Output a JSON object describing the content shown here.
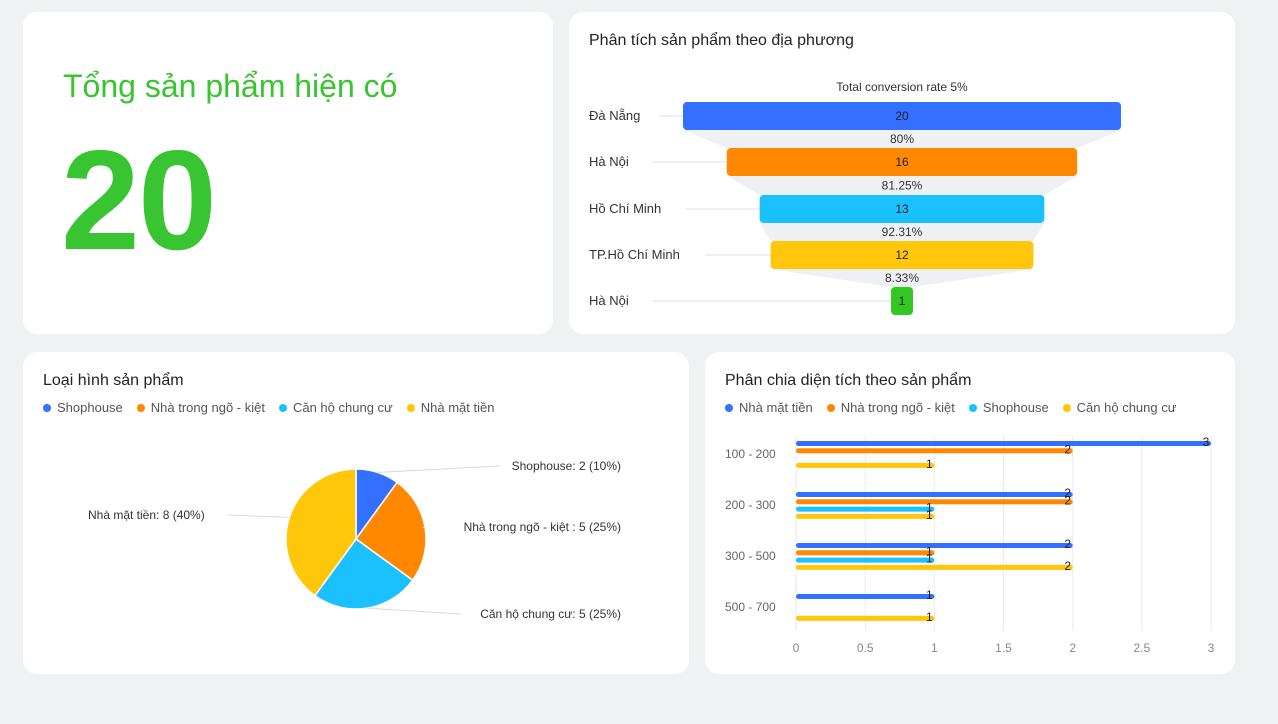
{
  "total": {
    "label": "Tổng sản phẩm hiện có",
    "value": "20",
    "color": "#39c431"
  },
  "funnel": {
    "title": "Phân tích sản phẩm theo địa phương",
    "conversion_label": "Total conversion rate 5%"
  },
  "pie": {
    "title": "Loại hình sản phẩm"
  },
  "bar": {
    "title": "Phân chia diện tích theo sản phẩm"
  },
  "chart_data": [
    {
      "type": "funnel",
      "title": "Phân tích sản phẩm theo địa phương",
      "annotation": "Total conversion rate 5%",
      "categories": [
        "Đà Nẵng",
        "Hà Nội",
        "Hồ Chí Minh",
        "TP.Hồ Chí Minh",
        "Hà Nội"
      ],
      "values": [
        20,
        16,
        13,
        12,
        1
      ],
      "conversion_labels": [
        "80%",
        "81.25%",
        "92.31%",
        "8.33%"
      ],
      "colors": [
        "#3370ff",
        "#ff8800",
        "#1bc0fe",
        "#ffc60a",
        "#34c724"
      ]
    },
    {
      "type": "pie",
      "title": "Loại hình sản phẩm",
      "labels": [
        "Shophouse",
        "Nhà trong ngõ - kiệt",
        "Căn hộ chung cư",
        "Nhà mặt tiền"
      ],
      "values": [
        2,
        5,
        5,
        8
      ],
      "slice_labels": [
        "Shophouse: 2 (10%)",
        "Nhà trong ngõ - kiệt : 5 (25%)",
        "Căn hộ chung cư: 5 (25%)",
        "Nhà mặt tiền: 8 (40%)"
      ],
      "colors": [
        "#3370ff",
        "#ff8800",
        "#1bc0fe",
        "#ffc60a"
      ],
      "legend": "top-left"
    },
    {
      "type": "bar",
      "orientation": "horizontal",
      "title": "Phân chia diện tích theo sản phẩm",
      "categories": [
        "100 - 200",
        "200 - 300",
        "300 - 500",
        "500 - 700"
      ],
      "series": [
        {
          "name": "Nhà mặt tiền",
          "color": "#3370ff",
          "values": [
            3,
            2,
            2,
            1
          ]
        },
        {
          "name": "Nhà trong ngõ - kiệt",
          "color": "#ff8800",
          "values": [
            2,
            2,
            1,
            null
          ]
        },
        {
          "name": "Shophouse",
          "color": "#1bc0fe",
          "values": [
            null,
            1,
            1,
            null
          ]
        },
        {
          "name": "Căn hộ chung cư",
          "color": "#ffc60a",
          "values": [
            1,
            1,
            2,
            1
          ]
        }
      ],
      "xlim": [
        0,
        3
      ],
      "xticks": [
        "0",
        "0.5",
        "1",
        "1.5",
        "2",
        "2.5",
        "3"
      ],
      "legend": "top-left",
      "grid": true
    }
  ]
}
